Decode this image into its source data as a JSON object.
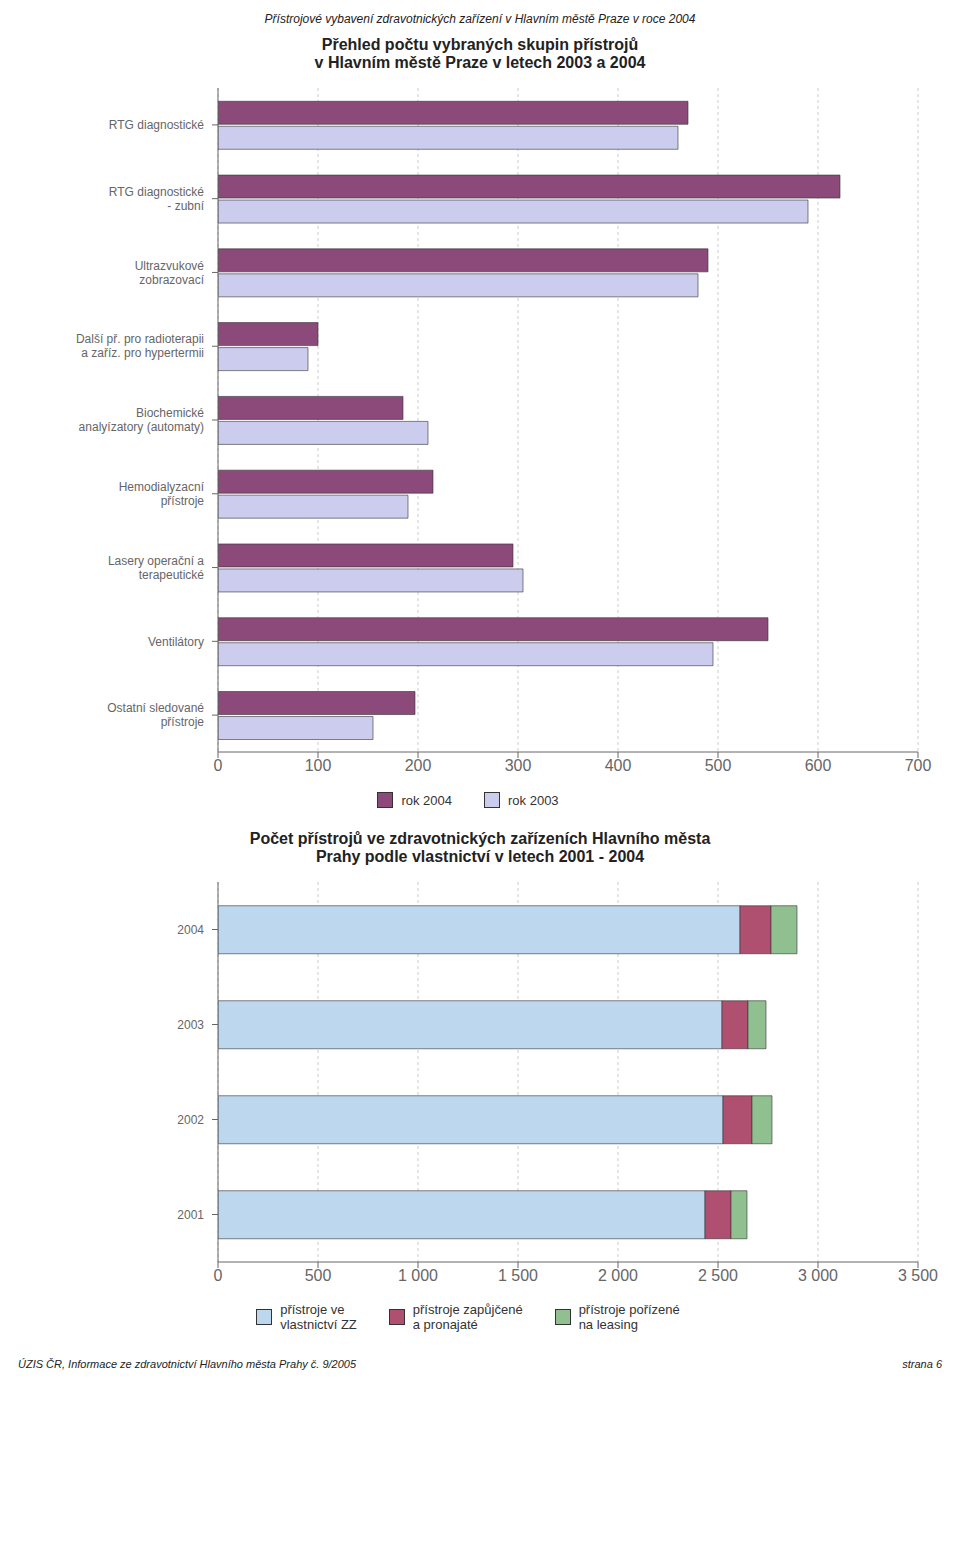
{
  "title": "Přístrojové vybavení zdravotnických zařízení v Hlavním městě Praze v roce 2004",
  "annotations": [
    "ÚZIS ČR, Informace ze zdravotnictví Hlavního města Prahy č. 9/2005",
    "strana 6"
  ],
  "chart_data": [
    {
      "type": "bar",
      "orientation": "horizontal",
      "title": "Přehled počtu vybraných skupin přístrojů\nv Hlavním městě Praze v letech 2003 a 2004",
      "categories": [
        "RTG diagnostické",
        "RTG diagnostické\n- zubní",
        "Ultrazvukové\nzobrazovací",
        "Další př. pro radioterapii\na zaříz. pro hypertermii",
        "Biochemické\nanalyízatory (automaty)",
        "Hemodialyzacní\npřístroje",
        "Lasery operační a\nterapeutické",
        "Ventilátory",
        "Ostatní sledované\npřístroje"
      ],
      "series": [
        {
          "name": "rok 2004",
          "color": "#8B4A7A",
          "values": [
            470,
            622,
            490,
            100,
            185,
            215,
            295,
            550,
            197
          ]
        },
        {
          "name": "rok 2003",
          "color": "#CCCCEE",
          "values": [
            460,
            590,
            480,
            90,
            210,
            190,
            305,
            495,
            155
          ]
        }
      ],
      "xlim": [
        0,
        700
      ],
      "xticks": [
        0,
        100,
        200,
        300,
        400,
        500,
        600,
        700
      ],
      "grid": true,
      "legend": "bottom"
    },
    {
      "type": "bar",
      "orientation": "horizontal",
      "stacked": true,
      "title": "Počet přístrojů ve zdravotnických zařízeních Hlavního města\nPrahy podle vlastnictví v letech 2001 - 2004",
      "categories": [
        "2004",
        "2003",
        "2002",
        "2001"
      ],
      "series": [
        {
          "name": "přístroje ve\nvlastnictví ZZ",
          "color": "#BDD7EE",
          "values": [
            2610,
            2520,
            2525,
            2435
          ]
        },
        {
          "name": "přístroje zapůjčené\na pronajaté",
          "color": "#B05070",
          "values": [
            155,
            130,
            145,
            130
          ]
        },
        {
          "name": "přístroje pořízené\nna leasing",
          "color": "#90C090",
          "values": [
            130,
            90,
            100,
            80
          ]
        }
      ],
      "xlim": [
        0,
        3500
      ],
      "xticks": [
        0,
        500,
        {
          "value": 1000,
          "label": "1 000"
        },
        {
          "value": 1500,
          "label": "1 500"
        },
        {
          "value": 2000,
          "label": "2 000"
        },
        {
          "value": 2500,
          "label": "2 500"
        },
        {
          "value": 3000,
          "label": "3 000"
        },
        {
          "value": 3500,
          "label": "3 500"
        }
      ],
      "grid": true,
      "legend": "bottom"
    }
  ]
}
